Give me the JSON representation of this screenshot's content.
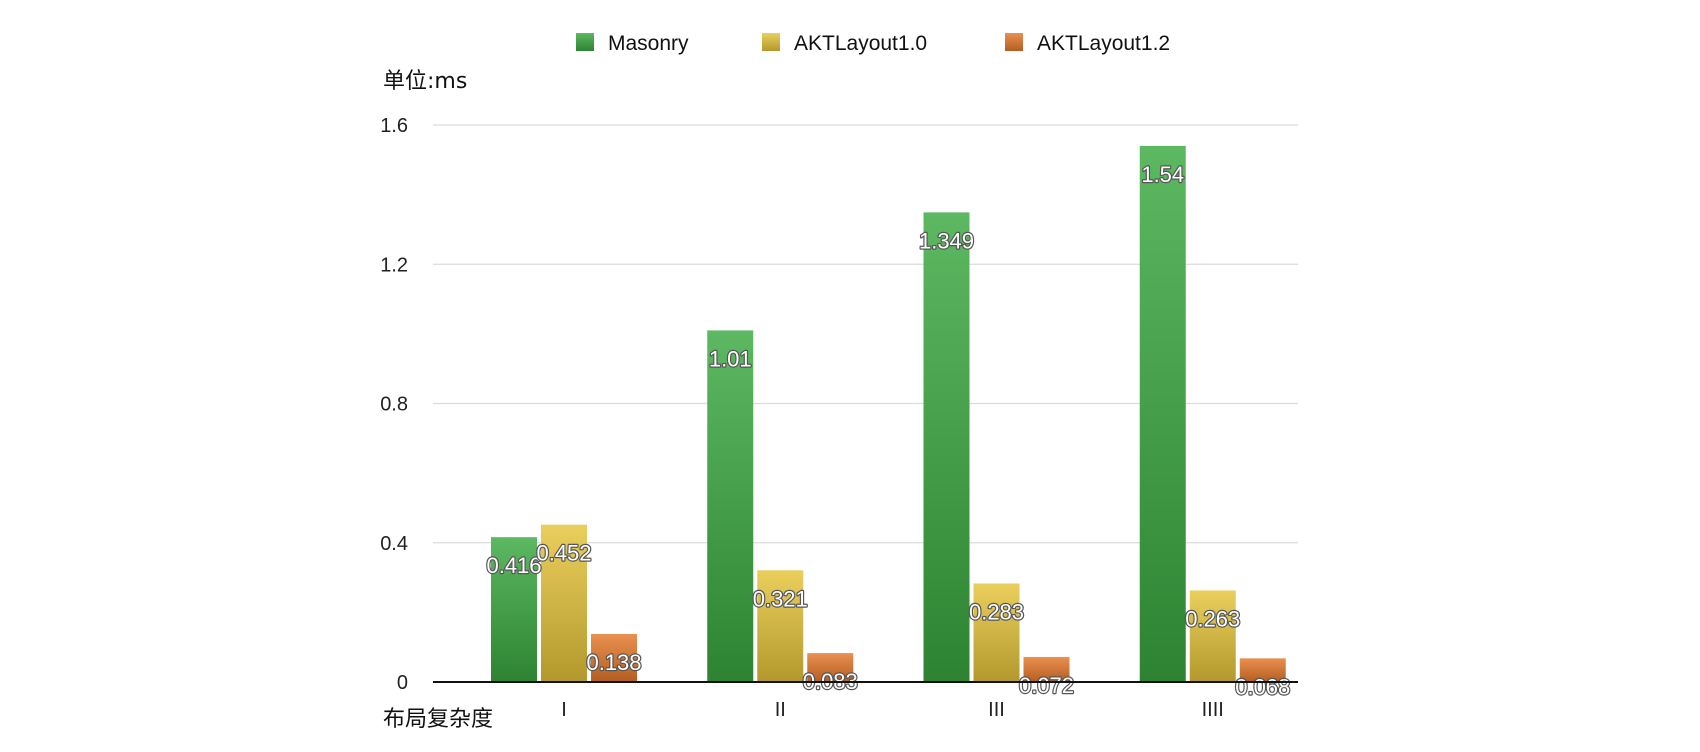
{
  "chart_data": {
    "type": "bar",
    "ylabel": "单位:ms",
    "xlabel": "布局复杂度",
    "categories": [
      "I",
      "II",
      "III",
      "IIII"
    ],
    "series": [
      {
        "name": "Masonry",
        "values": [
          0.416,
          1.01,
          1.349,
          1.54
        ],
        "labels": [
          "0.416",
          "1.01",
          "1.349",
          "1.54"
        ],
        "color": "#3aa83f"
      },
      {
        "name": "AKTLayout1.0",
        "values": [
          0.452,
          0.321,
          0.283,
          0.263
        ],
        "labels": [
          "0.452",
          "0.321",
          "0.283",
          "0.263"
        ],
        "color": "#e5c43a"
      },
      {
        "name": "AKTLayout1.2",
        "values": [
          0.138,
          0.083,
          0.072,
          0.068
        ],
        "labels": [
          "0.138",
          "0.083",
          "0.072",
          "0.068"
        ],
        "color": "#e5782a"
      }
    ],
    "ylim": [
      0,
      1.6
    ],
    "yticks": [
      0,
      0.4,
      0.8,
      1.2,
      1.6
    ],
    "ytick_labels": [
      "0",
      "0.4",
      "0.8",
      "1.2",
      "1.6"
    ],
    "grid": true,
    "legend_position": "top-center"
  }
}
